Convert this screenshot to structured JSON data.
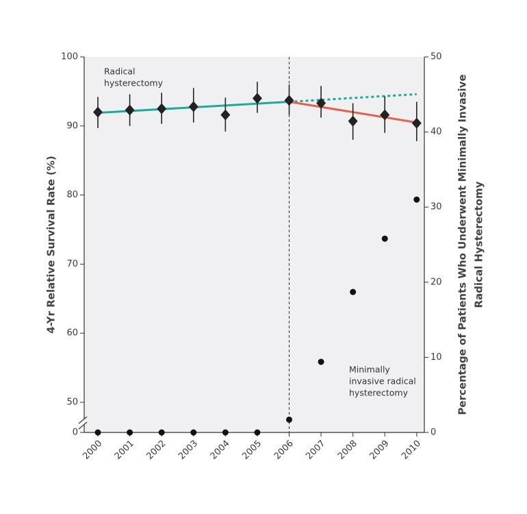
{
  "chart_data": {
    "type": "scatter",
    "x": [
      2000,
      2001,
      2002,
      2003,
      2004,
      2005,
      2006,
      2007,
      2008,
      2009,
      2010
    ],
    "xlim": [
      1999.57,
      2010.24
    ],
    "xticks": [
      2000,
      2001,
      2002,
      2003,
      2004,
      2005,
      2006,
      2007,
      2008,
      2009,
      2010
    ],
    "ylim": [
      0,
      100
    ],
    "ybreak": [
      0,
      50
    ],
    "yticks": [
      0,
      50,
      60,
      70,
      80,
      90,
      100
    ],
    "y2lim": [
      0,
      50
    ],
    "y2ticks": [
      0,
      10,
      20,
      30,
      40,
      50
    ],
    "ylabel": "4-Yr Relative Survival Rate (%)",
    "y2label": [
      "Percentage of Patients Who Underwent Minimally Invasive",
      "Radical Hysterectomy"
    ],
    "vline_x": 2006,
    "series": [
      {
        "marker": "diamond",
        "color": "#222222",
        "values": [
          92.0,
          92.3,
          92.5,
          92.8,
          91.6,
          94.0,
          93.7,
          93.3,
          90.7,
          91.6,
          90.4
        ],
        "error_low": [
          89.7,
          90.0,
          90.3,
          90.5,
          89.2,
          91.9,
          91.6,
          91.2,
          88.0,
          89.0,
          87.8
        ],
        "error_high": [
          94.2,
          94.6,
          94.8,
          95.5,
          94.1,
          96.4,
          96.0,
          95.8,
          93.3,
          94.3,
          93.5
        ]
      },
      {
        "marker": "circle",
        "color": "#111111",
        "axis": "y2",
        "values": [
          0,
          0,
          0,
          0,
          0,
          0,
          1.7,
          9.4,
          18.7,
          25.8,
          31.0
        ]
      }
    ],
    "trend_lines": [
      {
        "color": "#1aab9b",
        "style": "solid",
        "x": [
          2000,
          2006
        ],
        "values": [
          91.9,
          93.5
        ]
      },
      {
        "color": "#1aab9b",
        "style": "dotted",
        "x": [
          2006,
          2010
        ],
        "values": [
          93.5,
          94.6
        ]
      },
      {
        "color": "#e8604a",
        "style": "solid",
        "x": [
          2006,
          2010
        ],
        "values": [
          93.5,
          90.5
        ]
      }
    ],
    "annotations": [
      {
        "lines": [
          "Radical",
          "hysterectomy"
        ]
      },
      {
        "lines": [
          "Minimally",
          "invasive radical",
          "hysterectomy"
        ]
      }
    ]
  }
}
